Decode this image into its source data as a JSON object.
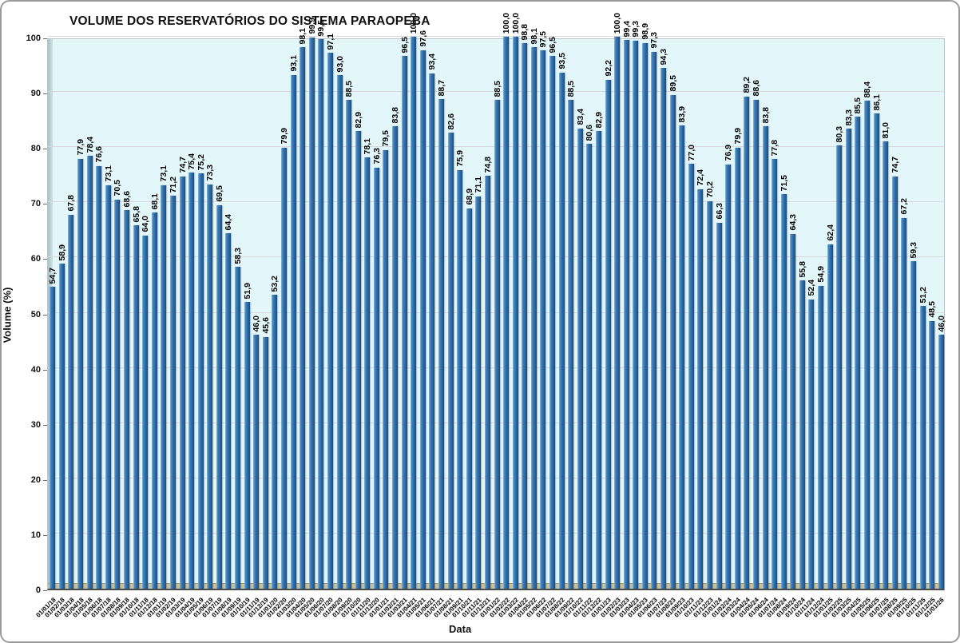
{
  "chart_data": {
    "type": "bar",
    "title": "VOLUME DOS RESERVATÓRIOS DO SISTEMA PARAOPEBA",
    "xlabel": "Data",
    "ylabel": "Volume (%)",
    "ylim": [
      0,
      100
    ],
    "yticks": [
      0,
      10,
      20,
      30,
      40,
      50,
      60,
      70,
      80,
      90,
      100
    ],
    "grid": true,
    "legend": false,
    "value_labels": "rotated-vertical, comma decimal",
    "x_label_rotation_deg": -45,
    "colors": {
      "bar_main": "#2e6da8",
      "bar_highlight": "#8fbede",
      "bar_shade": "#1b4c7c",
      "plot_background": "#e3f7fa",
      "floor": "#c9c19b",
      "wall": "#a9c2c6",
      "gridline": "#d9d9d9",
      "text": "#000000"
    },
    "categories": [
      "01/01/18",
      "01/02/18",
      "01/03/18",
      "01/04/18",
      "01/05/18",
      "01/06/18",
      "01/07/18",
      "01/08/18",
      "01/09/18",
      "01/10/18",
      "01/11/18",
      "01/12/18",
      "01/01/19",
      "01/02/19",
      "01/03/19",
      "01/04/19",
      "01/05/19",
      "01/06/19",
      "01/07/19",
      "01/08/19",
      "01/09/19",
      "01/10/19",
      "01/11/19",
      "01/12/19",
      "01/01/20",
      "01/02/20",
      "01/03/20",
      "01/04/20",
      "01/05/20",
      "01/06/20",
      "01/07/20",
      "01/08/20",
      "01/09/20",
      "01/10/20",
      "01/11/20",
      "01/12/20",
      "01/01/21",
      "01/02/21",
      "01/03/21",
      "01/04/21",
      "01/05/21",
      "01/06/21",
      "01/07/21",
      "01/08/21",
      "01/09/21",
      "01/10/21",
      "01/11/21",
      "01/12/21",
      "01/01/22",
      "01/02/22",
      "01/03/22",
      "01/04/22",
      "01/05/22",
      "01/06/22",
      "01/07/22",
      "01/08/22",
      "01/09/22",
      "01/10/22",
      "01/11/22",
      "01/12/22",
      "01/01/23",
      "01/02/23",
      "01/03/23",
      "01/04/23",
      "01/05/23",
      "01/06/23",
      "01/07/23",
      "01/08/23",
      "01/09/23",
      "01/10/23",
      "01/11/23",
      "01/12/23",
      "01/01/24",
      "01/02/24",
      "01/03/24",
      "01/04/24",
      "01/05/24",
      "01/06/24",
      "01/07/24",
      "01/08/24",
      "01/09/24",
      "01/10/24",
      "01/11/24",
      "01/12/24",
      "01/01/25",
      "01/02/25",
      "01/03/25",
      "01/04/25",
      "01/05/25",
      "01/06/25",
      "01/07/25",
      "01/08/25",
      "01/09/25",
      "01/10/25",
      "01/11/25",
      "01/12/25",
      "01/01/26"
    ],
    "values": [
      54.7,
      58.9,
      67.8,
      77.9,
      78.4,
      76.6,
      73.1,
      70.5,
      68.6,
      65.8,
      64.0,
      68.1,
      73.1,
      71.2,
      74.7,
      75.4,
      75.2,
      73.3,
      69.5,
      64.4,
      58.3,
      51.9,
      46.0,
      45.6,
      53.2,
      79.9,
      93.1,
      98.1,
      99.9,
      99.5,
      97.1,
      93.0,
      88.5,
      82.9,
      78.1,
      76.3,
      79.5,
      83.8,
      96.5,
      100.0,
      97.6,
      93.4,
      88.7,
      82.6,
      75.9,
      68.9,
      71.1,
      74.8,
      88.5,
      100.0,
      100.0,
      98.8,
      98.1,
      97.5,
      96.5,
      93.5,
      88.5,
      83.4,
      80.6,
      82.9,
      92.2,
      100.0,
      99.4,
      99.3,
      98.9,
      97.3,
      94.3,
      89.5,
      83.9,
      77.0,
      72.4,
      70.2,
      66.3,
      76.9,
      79.9,
      89.2,
      88.6,
      83.8,
      77.8,
      71.5,
      64.3,
      55.8,
      52.4,
      54.9,
      62.4,
      80.3,
      83.3,
      85.5,
      88.4,
      86.1,
      81.0,
      74.7,
      67.2,
      59.3,
      51.2,
      48.5,
      46.0
    ]
  }
}
